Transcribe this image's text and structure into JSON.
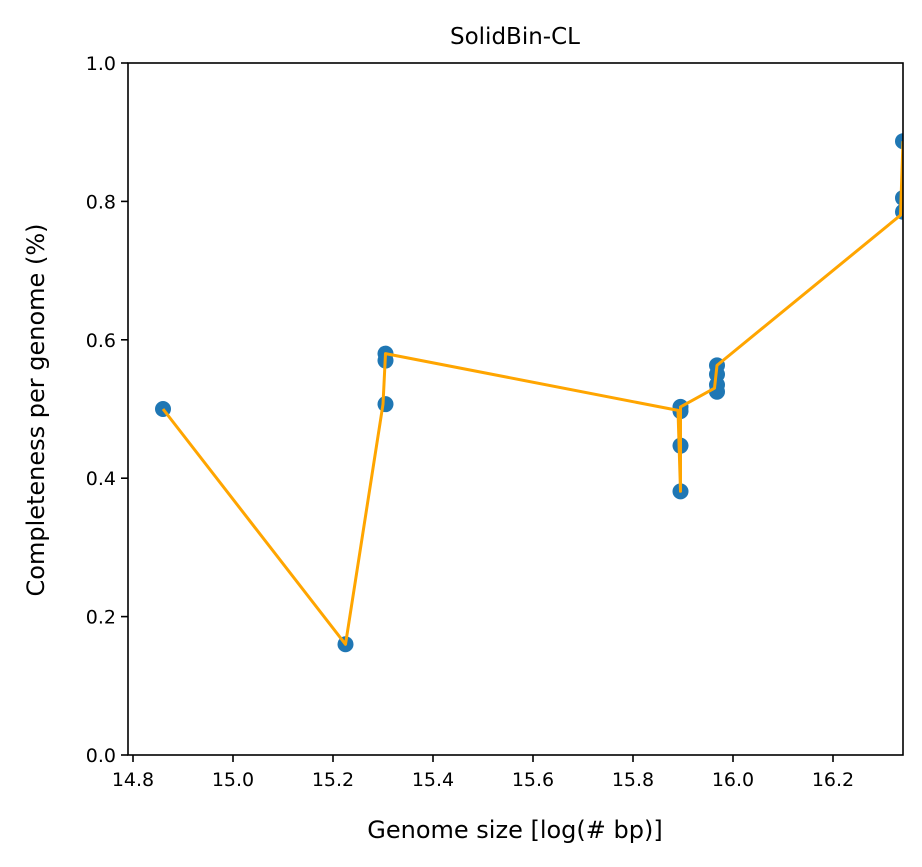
{
  "chart_data": {
    "type": "scatter",
    "title": "SolidBin-CL",
    "xlabel": "Genome size [log(# bp)]",
    "ylabel": "Completeness per genome (%)",
    "xlim": [
      14.79,
      16.34
    ],
    "ylim": [
      0.0,
      1.0
    ],
    "xticks": [
      14.8,
      15.0,
      15.2,
      15.4,
      15.6,
      15.8,
      16.0,
      16.2
    ],
    "xtick_labels": [
      "14.8",
      "15.0",
      "15.2",
      "15.4",
      "15.6",
      "15.8",
      "16.0",
      "16.2"
    ],
    "yticks": [
      0.0,
      0.2,
      0.4,
      0.6,
      0.8,
      1.0
    ],
    "ytick_labels": [
      "0.0",
      "0.2",
      "0.4",
      "0.6",
      "0.8",
      "1.0"
    ],
    "grid": false,
    "series": [
      {
        "kind": "scatter",
        "color": "#1f77b4",
        "points": [
          {
            "x": 14.86,
            "y": 0.5
          },
          {
            "x": 15.225,
            "y": 0.16
          },
          {
            "x": 15.305,
            "y": 0.58
          },
          {
            "x": 15.305,
            "y": 0.57
          },
          {
            "x": 15.305,
            "y": 0.507
          },
          {
            "x": 15.895,
            "y": 0.503
          },
          {
            "x": 15.895,
            "y": 0.497
          },
          {
            "x": 15.895,
            "y": 0.447
          },
          {
            "x": 15.895,
            "y": 0.381
          },
          {
            "x": 15.968,
            "y": 0.563
          },
          {
            "x": 15.968,
            "y": 0.55
          },
          {
            "x": 15.968,
            "y": 0.535
          },
          {
            "x": 15.968,
            "y": 0.525
          },
          {
            "x": 16.34,
            "y": 0.887
          },
          {
            "x": 16.34,
            "y": 0.805
          },
          {
            "x": 16.34,
            "y": 0.785
          }
        ]
      },
      {
        "kind": "line",
        "color": "#ffa500",
        "points": [
          {
            "x": 14.86,
            "y": 0.5
          },
          {
            "x": 15.225,
            "y": 0.16
          },
          {
            "x": 15.3,
            "y": 0.507
          },
          {
            "x": 15.305,
            "y": 0.58
          },
          {
            "x": 15.89,
            "y": 0.498
          },
          {
            "x": 15.895,
            "y": 0.381
          },
          {
            "x": 15.895,
            "y": 0.503
          },
          {
            "x": 15.963,
            "y": 0.53
          },
          {
            "x": 15.968,
            "y": 0.563
          },
          {
            "x": 16.335,
            "y": 0.78
          },
          {
            "x": 16.34,
            "y": 0.887
          }
        ]
      }
    ]
  }
}
